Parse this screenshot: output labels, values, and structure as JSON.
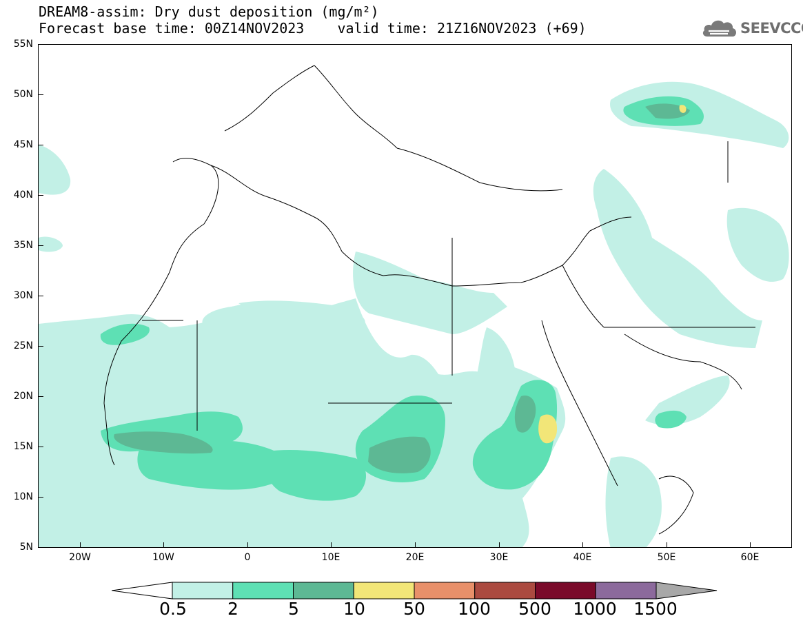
{
  "title": {
    "line1": "DREAM8-assim: Dry dust deposition (mg/m²)",
    "line2": "Forecast base time: 00Z14NOV2023    valid time: 21Z16NOV2023 (+69)"
  },
  "logo": {
    "text": "SEEVCCC",
    "icon": "cloud-logo-icon"
  },
  "axes": {
    "lat_labels": [
      "55N",
      "50N",
      "45N",
      "40N",
      "35N",
      "30N",
      "25N",
      "20N",
      "15N",
      "10N",
      "5N"
    ],
    "lon_labels": [
      "20W",
      "10W",
      "0",
      "10E",
      "20E",
      "30E",
      "40E",
      "50E",
      "60E"
    ],
    "lat_range": [
      5,
      55
    ],
    "lon_range": [
      -25,
      65
    ]
  },
  "legend": {
    "labels": [
      "0.5",
      "2",
      "5",
      "10",
      "50",
      "100",
      "500",
      "1000",
      "1500"
    ],
    "colors": [
      "#c2f0e6",
      "#5ee0b4",
      "#5db894",
      "#f2e678",
      "#e8906a",
      "#ab4a40",
      "#7a0a2a",
      "#8c6a9c"
    ],
    "under_color": "#ffffff",
    "over_color": "#a8a8a8"
  },
  "colors": {
    "level1": "#c2f0e6",
    "level2": "#5ee0b4",
    "level3": "#5db894",
    "level4": "#f2e678",
    "border": "#000000"
  }
}
